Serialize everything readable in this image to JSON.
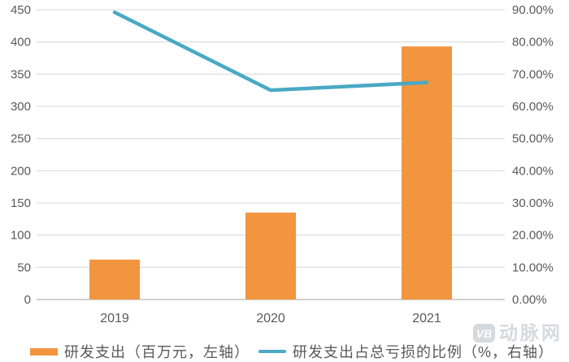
{
  "chart_data": {
    "type": "combo-bar-line",
    "title": "",
    "categories": [
      "2019",
      "2020",
      "2021"
    ],
    "series": [
      {
        "name": "研发支出（百万元，左轴）",
        "type": "bar",
        "axis": "left",
        "values": [
          62,
          135,
          393
        ],
        "color": "#F2953F"
      },
      {
        "name": "研发支出占总亏损的比例（%，右轴）",
        "type": "line",
        "axis": "right",
        "values": [
          89.2,
          65.0,
          67.4
        ],
        "color": "#4AA9C4"
      }
    ],
    "left_axis": {
      "min": 0,
      "max": 450,
      "step": 50,
      "tick_labels": [
        "0",
        "50",
        "100",
        "150",
        "200",
        "250",
        "300",
        "350",
        "400",
        "450"
      ]
    },
    "right_axis": {
      "min": 0,
      "max": 90,
      "step": 10,
      "tick_labels": [
        "0.00%",
        "10.00%",
        "20.00%",
        "30.00%",
        "40.00%",
        "50.00%",
        "60.00%",
        "70.00%",
        "80.00%",
        "90.00%"
      ]
    },
    "grid": true,
    "legend_position": "bottom"
  },
  "colors": {
    "grid": "#D9D9D9",
    "axis_line": "#C0C0C0",
    "tick_text": "#595959",
    "watermark": "#bcc4cd"
  },
  "watermark": {
    "logo": "VB",
    "text": "动脉网"
  }
}
